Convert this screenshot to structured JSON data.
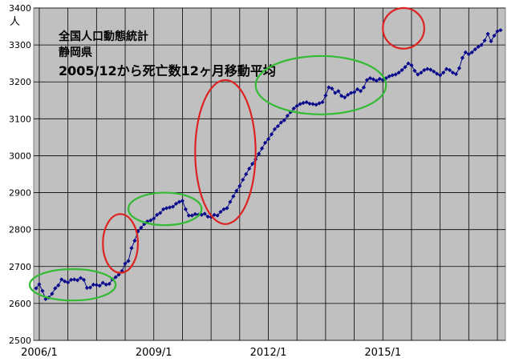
{
  "chart_data": {
    "type": "line",
    "title_lines": [
      "全国人口動態統計",
      "静岡県",
      "2005/12から死亡数12ヶ月移動平均"
    ],
    "ylabel": "人",
    "xlabel": "",
    "ylim": [
      2500,
      3400
    ],
    "yticks": [
      2500,
      2600,
      2700,
      2800,
      2900,
      3000,
      3100,
      3200,
      3300,
      3400
    ],
    "x_tick_labels": [
      "2006/1",
      "2009/1",
      "2012/1",
      "2015/1"
    ],
    "x_start": "2005/12",
    "grid": true,
    "series": [
      {
        "values": [
          2641,
          2652,
          2634,
          2612,
          2616,
          2626,
          2641,
          2649,
          2665,
          2660,
          2657,
          2664,
          2665,
          2663,
          2669,
          2664,
          2642,
          2643,
          2651,
          2650,
          2648,
          2656,
          2651,
          2653,
          2665,
          2671,
          2678,
          2688,
          2708,
          2715,
          2750,
          2770,
          2795,
          2805,
          2815,
          2822,
          2825,
          2830,
          2840,
          2845,
          2855,
          2858,
          2860,
          2862,
          2870,
          2875,
          2878,
          2855,
          2838,
          2838,
          2842,
          2840,
          2840,
          2843,
          2835,
          2834,
          2840,
          2838,
          2848,
          2855,
          2858,
          2875,
          2890,
          2905,
          2918,
          2935,
          2950,
          2965,
          2978,
          2990,
          3005,
          3020,
          3035,
          3045,
          3058,
          3072,
          3080,
          3090,
          3096,
          3108,
          3118,
          3128,
          3135,
          3140,
          3143,
          3145,
          3141,
          3140,
          3138,
          3142,
          3145,
          3163,
          3185,
          3182,
          3170,
          3175,
          3162,
          3158,
          3165,
          3170,
          3172,
          3180,
          3175,
          3185,
          3205,
          3210,
          3207,
          3203,
          3208,
          3205,
          3210,
          3215,
          3218,
          3220,
          3225,
          3232,
          3240,
          3250,
          3245,
          3230,
          3220,
          3225,
          3232,
          3235,
          3233,
          3228,
          3222,
          3218,
          3225,
          3235,
          3232,
          3225,
          3221,
          3237,
          3265,
          3280,
          3275,
          3280,
          3288,
          3295,
          3300,
          3312,
          3330,
          3310,
          3325,
          3337,
          3340
        ]
      }
    ],
    "annotations": [
      {
        "shape": "ellipse",
        "color": "#33bb33",
        "x_range": [
          "2005/10",
          "2008/1"
        ],
        "y_range": [
          2608,
          2693
        ]
      },
      {
        "shape": "ellipse",
        "color": "#dd2222",
        "x_range": [
          "2007/9",
          "2008/8"
        ],
        "y_range": [
          2683,
          2842
        ]
      },
      {
        "shape": "ellipse",
        "color": "#33bb33",
        "x_range": [
          "2008/5",
          "2010/4"
        ],
        "y_range": [
          2812,
          2900
        ]
      },
      {
        "shape": "ellipse",
        "color": "#dd2222",
        "x_range": [
          "2010/2",
          "2011/9"
        ],
        "y_range": [
          2815,
          3205
        ]
      },
      {
        "shape": "ellipse",
        "color": "#33bb33",
        "x_range": [
          "2011/9",
          "2015/2"
        ],
        "y_range": [
          3112,
          3270
        ]
      },
      {
        "shape": "ellipse",
        "color": "#dd2222",
        "x_range": [
          "2015/1",
          "2016/2"
        ],
        "y_range": [
          3290,
          3400
        ]
      }
    ]
  }
}
